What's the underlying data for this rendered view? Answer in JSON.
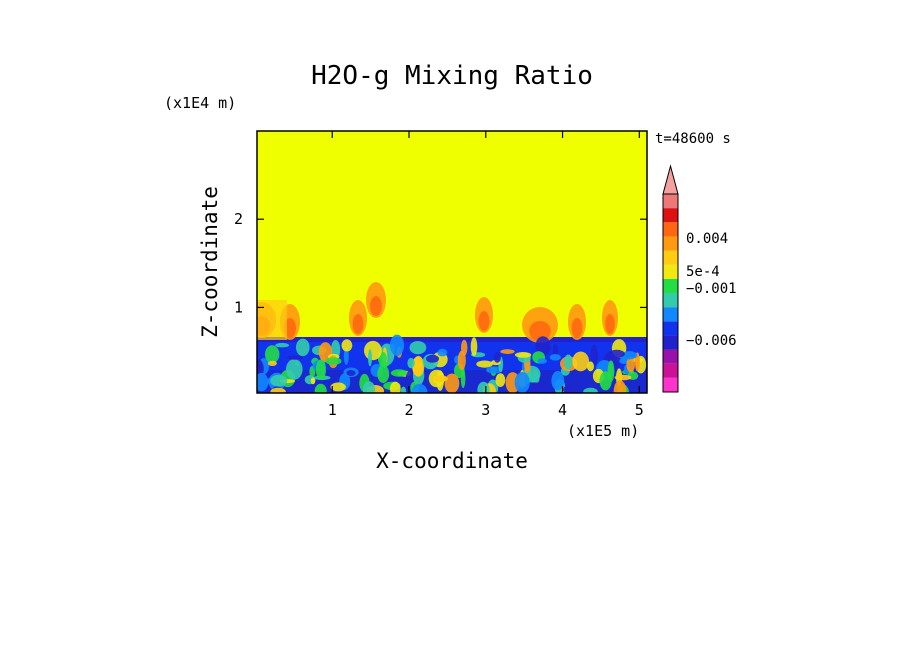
{
  "chart_data": {
    "type": "heatmap",
    "title": "H2O-g Mixing Ratio",
    "xlabel": "X-coordinate",
    "ylabel": "Z-coordinate",
    "x_unit": "(x1E5 m)",
    "y_unit": "(x1E4 m)",
    "time_label": "t=48600 s",
    "x_ticks": [
      "1",
      "2",
      "3",
      "4",
      "5"
    ],
    "x_tick_values": [
      1,
      2,
      3,
      4,
      5
    ],
    "y_ticks": [
      "1",
      "2"
    ],
    "y_tick_values": [
      1,
      2
    ],
    "xlim": [
      0.02,
      5.1
    ],
    "ylim": [
      0.03,
      3.0
    ],
    "colorbar": {
      "colors": [
        "#ff33cc",
        "#cc1199",
        "#9911aa",
        "#2222cc",
        "#1133ee",
        "#1188ff",
        "#33ccaa",
        "#22dd44",
        "#f0e810",
        "#ffcc11",
        "#ff9911",
        "#ff6611",
        "#dd1111",
        "#ee7777"
      ],
      "extend_top": true,
      "extend_color": "#f5a0a0",
      "labels": [
        {
          "text": "0.004",
          "value": 0.004
        },
        {
          "text": "5e-4",
          "value": 0.0005
        },
        {
          "text": "−0.001",
          "value": -0.001
        },
        {
          "text": "−0.006",
          "value": -0.006
        }
      ]
    },
    "background_color": "#f0ff00"
  }
}
